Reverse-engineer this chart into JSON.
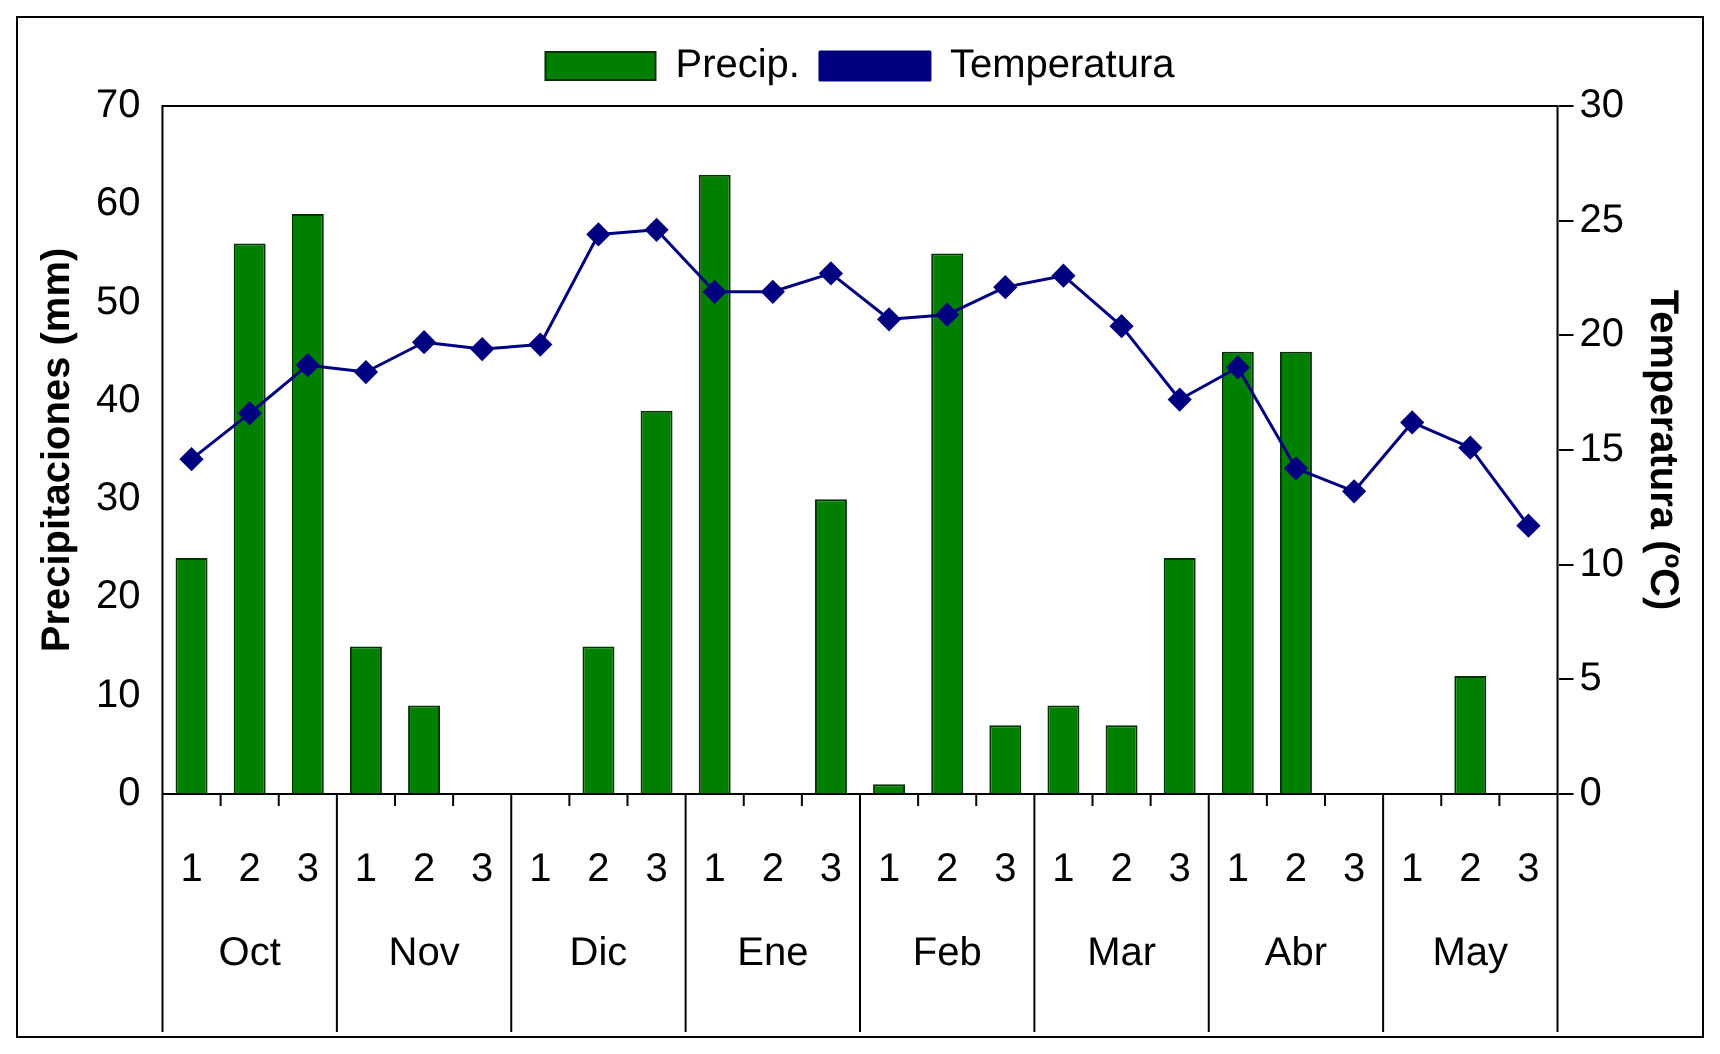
{
  "chart_data": {
    "type": "bar",
    "xlabel": null,
    "ylabel": "Precipitaciones (mm)",
    "y2label": "Temperatura (ºC)",
    "categories": [
      "1",
      "2",
      "3",
      "1",
      "2",
      "3",
      "1",
      "2",
      "3",
      "1",
      "2",
      "3",
      "1",
      "2",
      "3",
      "1",
      "2",
      "3",
      "1",
      "2",
      "3",
      "1",
      "2",
      "3"
    ],
    "annotations": [
      "Oct",
      "Nov",
      "Dic",
      "Ene",
      "Feb",
      "Mar",
      "Abr",
      "May"
    ],
    "series": [
      {
        "name": "Precip.",
        "color": "#008000",
        "values": [
          24,
          56,
          59,
          15,
          9,
          0,
          0,
          15,
          39,
          63,
          0,
          30,
          1,
          55,
          7,
          9,
          7,
          24,
          45,
          45,
          0,
          0,
          12,
          0
        ]
      },
      {
        "name": "Temperatura",
        "type": "line",
        "axis": "y2",
        "color": "#000080",
        "marker": "diamond",
        "values": [
          14.6,
          16.6,
          18.7,
          18.4,
          19.7,
          19.4,
          19.6,
          24.4,
          24.6,
          21.9,
          21.9,
          22.7,
          20.7,
          20.9,
          22.1,
          22.6,
          20.4,
          17.2,
          18.6,
          14.2,
          13.2,
          16.2,
          15.1,
          11.7
        ]
      }
    ],
    "ylim": [
      0,
      70
    ],
    "yticks": [
      0,
      10,
      20,
      30,
      40,
      50,
      60,
      70
    ],
    "y2lim": [
      0,
      30
    ],
    "y2ticks": [
      0,
      5,
      10,
      15,
      20,
      25,
      30
    ],
    "grid": false,
    "legend": "top"
  }
}
